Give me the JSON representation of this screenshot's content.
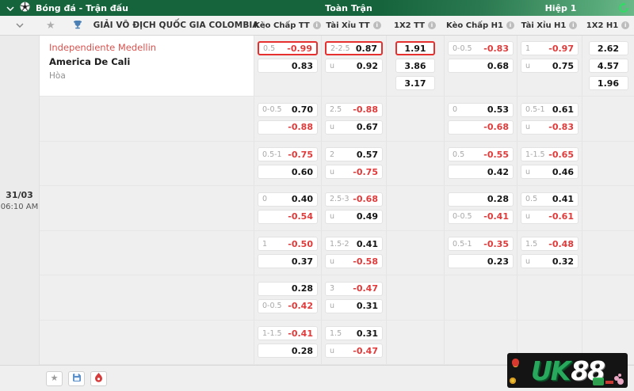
{
  "topbar": {
    "title": "Bóng đá - Trận đấu",
    "full_time_label": "Toàn Trận",
    "first_half_label": "Hiệp 1"
  },
  "league_header": {
    "title": "GIẢI VÔ ĐỊCH QUỐC GIA COLOMBIA",
    "columns": [
      "Kèo Chấp TT",
      "Tài Xỉu TT",
      "1X2 TT",
      "Kèo Chấp H1",
      "Tài Xỉu H1",
      "1X2 H1"
    ]
  },
  "match": {
    "date": "31/03",
    "time": "06:10 AM",
    "home": "Independiente Medellin",
    "away": "America De Cali",
    "draw_label": "Hòa"
  },
  "odds_rows": [
    {
      "hdp_tt": [
        {
          "line": "0.5",
          "value": "-0.99",
          "negative": true,
          "highlight": true
        },
        {
          "line": "",
          "value": "0.83"
        }
      ],
      "ou_tt": [
        {
          "line": "2-2.5",
          "value": "0.87",
          "highlight": true
        },
        {
          "line": "u",
          "value": "0.92"
        }
      ],
      "x12_tt": [
        {
          "value": "1.91",
          "highlight": true
        },
        {
          "value": "3.86"
        },
        {
          "value": "3.17"
        }
      ],
      "hdp_h1": [
        {
          "line": "0-0.5",
          "value": "-0.83",
          "negative": true
        },
        {
          "line": "",
          "value": "0.68"
        }
      ],
      "ou_h1": [
        {
          "line": "1",
          "value": "-0.97",
          "negative": true
        },
        {
          "line": "u",
          "value": "0.75"
        }
      ],
      "x12_h1": [
        {
          "value": "2.62"
        },
        {
          "value": "4.57"
        },
        {
          "value": "1.96"
        }
      ]
    },
    {
      "hdp_tt": [
        {
          "line": "0-0.5",
          "value": "0.70"
        },
        {
          "line": "",
          "value": "-0.88",
          "negative": true
        }
      ],
      "ou_tt": [
        {
          "line": "2.5",
          "value": "-0.88",
          "negative": true
        },
        {
          "line": "u",
          "value": "0.67"
        }
      ],
      "x12_tt": [],
      "hdp_h1": [
        {
          "line": "0",
          "value": "0.53"
        },
        {
          "line": "",
          "value": "-0.68",
          "negative": true
        }
      ],
      "ou_h1": [
        {
          "line": "0.5-1",
          "value": "0.61"
        },
        {
          "line": "u",
          "value": "-0.83",
          "negative": true
        }
      ],
      "x12_h1": []
    },
    {
      "hdp_tt": [
        {
          "line": "0.5-1",
          "value": "-0.75",
          "negative": true
        },
        {
          "line": "",
          "value": "0.60"
        }
      ],
      "ou_tt": [
        {
          "line": "2",
          "value": "0.57"
        },
        {
          "line": "u",
          "value": "-0.75",
          "negative": true
        }
      ],
      "x12_tt": [],
      "hdp_h1": [
        {
          "line": "0.5",
          "value": "-0.55",
          "negative": true
        },
        {
          "line": "",
          "value": "0.42"
        }
      ],
      "ou_h1": [
        {
          "line": "1-1.5",
          "value": "-0.65",
          "negative": true
        },
        {
          "line": "u",
          "value": "0.46"
        }
      ],
      "x12_h1": []
    },
    {
      "hdp_tt": [
        {
          "line": "0",
          "value": "0.40"
        },
        {
          "line": "",
          "value": "-0.54",
          "negative": true
        }
      ],
      "ou_tt": [
        {
          "line": "2.5-3",
          "value": "-0.68",
          "negative": true
        },
        {
          "line": "u",
          "value": "0.49"
        }
      ],
      "x12_tt": [],
      "hdp_h1": [
        {
          "line": "",
          "value": "0.28"
        },
        {
          "line": "0-0.5",
          "value": "-0.41",
          "negative": true
        }
      ],
      "ou_h1": [
        {
          "line": "0.5",
          "value": "0.41"
        },
        {
          "line": "u",
          "value": "-0.61",
          "negative": true
        }
      ],
      "x12_h1": []
    },
    {
      "hdp_tt": [
        {
          "line": "1",
          "value": "-0.50",
          "negative": true
        },
        {
          "line": "",
          "value": "0.37"
        }
      ],
      "ou_tt": [
        {
          "line": "1.5-2",
          "value": "0.41"
        },
        {
          "line": "u",
          "value": "-0.58",
          "negative": true
        }
      ],
      "x12_tt": [],
      "hdp_h1": [
        {
          "line": "0.5-1",
          "value": "-0.35",
          "negative": true
        },
        {
          "line": "",
          "value": "0.23"
        }
      ],
      "ou_h1": [
        {
          "line": "1.5",
          "value": "-0.48",
          "negative": true
        },
        {
          "line": "u",
          "value": "0.32"
        }
      ],
      "x12_h1": []
    },
    {
      "hdp_tt": [
        {
          "line": "",
          "value": "0.28"
        },
        {
          "line": "0-0.5",
          "value": "-0.42",
          "negative": true
        }
      ],
      "ou_tt": [
        {
          "line": "3",
          "value": "-0.47",
          "negative": true
        },
        {
          "line": "u",
          "value": "0.31"
        }
      ],
      "x12_tt": [],
      "hdp_h1": [],
      "ou_h1": [],
      "x12_h1": []
    },
    {
      "hdp_tt": [
        {
          "line": "1-1.5",
          "value": "-0.41",
          "negative": true
        },
        {
          "line": "",
          "value": "0.28"
        }
      ],
      "ou_tt": [
        {
          "line": "1.5",
          "value": "0.31"
        },
        {
          "line": "u",
          "value": "-0.47",
          "negative": true
        }
      ],
      "x12_tt": [],
      "hdp_h1": [],
      "ou_h1": [],
      "x12_h1": []
    }
  ],
  "footer": {
    "icons": [
      "star-icon",
      "save-icon",
      "fire-icon"
    ]
  },
  "watermark": {
    "text_uk": "UK",
    "text_88": "88"
  },
  "colors": {
    "topbar_green": "#15643c",
    "refresh_green": "#2ede63",
    "highlight_border_red": "#e5302f",
    "odds_negative_red": "#e03a3a",
    "home_team_red": "#d9534f",
    "logo_green": "#27a85c"
  }
}
